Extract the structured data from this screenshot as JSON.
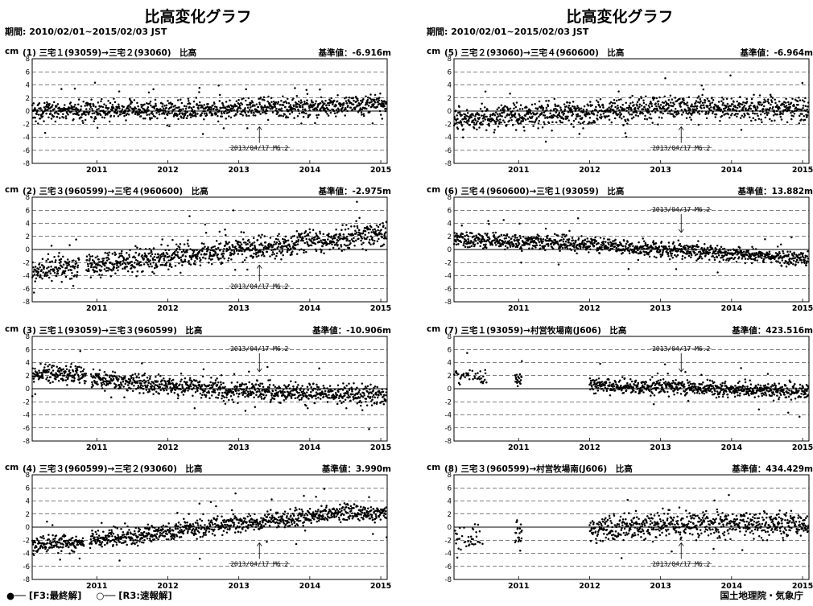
{
  "columns": [
    {
      "title": "比高変化グラフ",
      "period": "期間: 2010/02/01~2015/02/03 JST"
    },
    {
      "title": "比高変化グラフ",
      "period": "期間: 2010/02/01~2015/02/03 JST"
    }
  ],
  "legend": {
    "final": "●── [F3:最終解]",
    "rapid": "○── [R3:速報解]"
  },
  "credit": "国土地理院・気象庁",
  "chart_data": [
    {
      "type": "scatter",
      "label": "(1) 三宅１(93059)→三宅２(93060)　比高",
      "ylabel": "cm",
      "baseline_label": "基準値：",
      "baseline": "-6.916m",
      "ylim": [
        -8,
        8
      ],
      "yticks": [
        8,
        6,
        4,
        2,
        0,
        -2,
        -4,
        -6,
        -8
      ],
      "xticks": [
        "2011",
        "2012",
        "2013",
        "2014",
        "2015"
      ],
      "annotation": "2013/04/17 M6.2",
      "trend": [
        [
          2010.09,
          0.0
        ],
        [
          2012.5,
          0.2
        ],
        [
          2015.1,
          1.0
        ]
      ],
      "spread": 1.0,
      "gaps": [],
      "series": "F3"
    },
    {
      "type": "scatter",
      "label": "(2) 三宅３(960599)→三宅４(960600)　比高",
      "ylabel": "cm",
      "baseline_label": "基準値：",
      "baseline": "-2.975m",
      "ylim": [
        -8,
        8
      ],
      "yticks": [
        8,
        6,
        4,
        2,
        0,
        -2,
        -4,
        -6,
        -8
      ],
      "xticks": [
        "2011",
        "2012",
        "2013",
        "2014",
        "2015"
      ],
      "annotation": "2013/04/17 M6.2",
      "trend": [
        [
          2010.09,
          -3.5
        ],
        [
          2010.7,
          -2.5
        ],
        [
          2011.9,
          -1.5
        ],
        [
          2013.0,
          0.0
        ],
        [
          2015.1,
          2.5
        ]
      ],
      "spread": 1.3,
      "gaps": [
        [
          2010.75,
          2010.85
        ]
      ],
      "series": "F3"
    },
    {
      "type": "scatter",
      "label": "(3) 三宅１(93059)→三宅３(960599)　比高",
      "ylabel": "cm",
      "baseline_label": "基準値：",
      "baseline": "-10.906m",
      "ylim": [
        -8,
        8
      ],
      "yticks": [
        8,
        6,
        4,
        2,
        0,
        -2,
        -4,
        -6,
        -8
      ],
      "xticks": [
        "2011",
        "2012",
        "2013",
        "2014",
        "2015"
      ],
      "annotation": "2013/04/17 M6.2",
      "trend": [
        [
          2010.09,
          2.5
        ],
        [
          2010.8,
          2.0
        ],
        [
          2011.0,
          1.5
        ],
        [
          2012.0,
          0.5
        ],
        [
          2013.0,
          -0.3
        ],
        [
          2015.1,
          -1.2
        ]
      ],
      "spread": 1.0,
      "gaps": [
        [
          2010.85,
          2010.92
        ]
      ],
      "series": "F3"
    },
    {
      "type": "scatter",
      "label": "(4) 三宅３(960599)→三宅２(93060)　比高",
      "ylabel": "cm",
      "baseline_label": "基準値：",
      "baseline": "3.990m",
      "ylim": [
        -8,
        8
      ],
      "yticks": [
        8,
        6,
        4,
        2,
        0,
        -2,
        -4,
        -6,
        -8
      ],
      "xticks": [
        "2011",
        "2012",
        "2013",
        "2014",
        "2015"
      ],
      "annotation": "2013/04/17 M6.2",
      "trend": [
        [
          2010.09,
          -2.7
        ],
        [
          2010.8,
          -2.3
        ],
        [
          2011.0,
          -2.0
        ],
        [
          2012.0,
          -0.8
        ],
        [
          2013.0,
          0.5
        ],
        [
          2014.5,
          2.2
        ],
        [
          2015.1,
          2.0
        ]
      ],
      "spread": 0.9,
      "gaps": [
        [
          2010.82,
          2010.9
        ]
      ],
      "series": "F3"
    },
    {
      "type": "scatter",
      "label": "(5) 三宅２(93060)→三宅４(960600)　比高",
      "ylabel": "cm",
      "baseline_label": "基準値：",
      "baseline": "-6.964m",
      "ylim": [
        -8,
        8
      ],
      "yticks": [
        8,
        6,
        4,
        2,
        0,
        -2,
        -4,
        -6,
        -8
      ],
      "xticks": [
        "2011",
        "2012",
        "2013",
        "2014",
        "2015"
      ],
      "annotation": "2013/04/17 M6.2",
      "trend": [
        [
          2010.09,
          -1.2
        ],
        [
          2011.5,
          -0.5
        ],
        [
          2013.0,
          0.5
        ],
        [
          2015.1,
          0.3
        ]
      ],
      "spread": 1.3,
      "gaps": [],
      "series": "F3"
    },
    {
      "type": "scatter",
      "label": "(6) 三宅４(960600)→三宅１(93059)　比高",
      "ylabel": "cm",
      "baseline_label": "基準値：",
      "baseline": "13.882m",
      "ylim": [
        -8,
        8
      ],
      "yticks": [
        8,
        6,
        4,
        2,
        0,
        -2,
        -4,
        -6,
        -8
      ],
      "xticks": [
        "2011",
        "2012",
        "2013",
        "2014",
        "2015"
      ],
      "annotation": "2013/04/17 M6.2",
      "trend": [
        [
          2010.09,
          1.5
        ],
        [
          2012.0,
          0.8
        ],
        [
          2013.0,
          0.0
        ],
        [
          2015.1,
          -1.5
        ]
      ],
      "spread": 0.8,
      "gaps": [],
      "series": "F3"
    },
    {
      "type": "scatter",
      "label": "(7) 三宅１(93059)→村営牧場南(J606)　比高",
      "ylabel": "cm",
      "baseline_label": "基準値：",
      "baseline": "423.516m",
      "ylim": [
        -8,
        8
      ],
      "yticks": [
        8,
        6,
        4,
        2,
        0,
        -2,
        -4,
        -6,
        -8
      ],
      "xticks": [
        "2011",
        "2012",
        "2013",
        "2014",
        "2015"
      ],
      "annotation": "2013/04/17 M6.2",
      "trend": [
        [
          2010.09,
          2.0
        ],
        [
          2012.0,
          0.5
        ],
        [
          2013.0,
          0.3
        ],
        [
          2015.1,
          -0.5
        ]
      ],
      "spread": 0.8,
      "gaps": [
        [
          2010.55,
          2010.95
        ],
        [
          2011.05,
          2012.0
        ]
      ],
      "series": "F3"
    },
    {
      "type": "scatter",
      "label": "(8) 三宅３(960599)→村営牧場南(J606)　比高",
      "ylabel": "cm",
      "baseline_label": "基準値：",
      "baseline": "434.429m",
      "ylim": [
        -8,
        8
      ],
      "yticks": [
        8,
        6,
        4,
        2,
        0,
        -2,
        -4,
        -6,
        -8
      ],
      "xticks": [
        "2011",
        "2012",
        "2013",
        "2014",
        "2015"
      ],
      "annotation": "2013/04/17 M6.2",
      "trend": [
        [
          2010.09,
          -1.5
        ],
        [
          2012.0,
          -0.5
        ],
        [
          2013.0,
          0.3
        ],
        [
          2015.1,
          0.5
        ]
      ],
      "spread": 1.4,
      "gaps": [
        [
          2010.55,
          2010.95
        ],
        [
          2011.05,
          2012.0
        ]
      ],
      "series": "F3"
    }
  ]
}
